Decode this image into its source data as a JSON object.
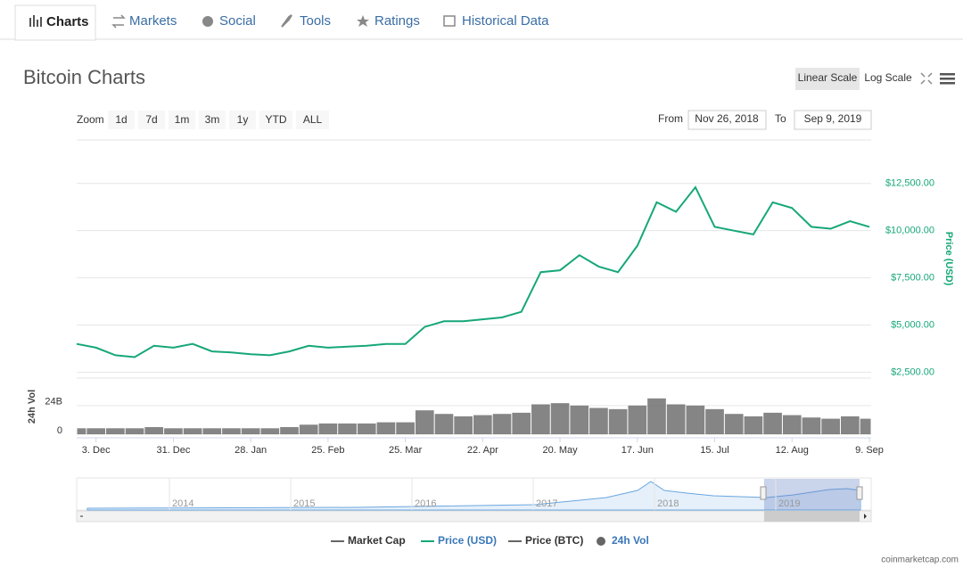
{
  "tabs": [
    "Charts",
    "Markets",
    "Social",
    "Tools",
    "Ratings",
    "Historical Data"
  ],
  "title": "Bitcoin Charts",
  "scale_buttons": [
    "Linear Scale",
    "Log Scale"
  ],
  "zoom_label": "Zoom",
  "zoom_buttons": [
    "1d",
    "7d",
    "1m",
    "3m",
    "1y",
    "YTD",
    "ALL"
  ],
  "from_label": "From",
  "from_date": "Nov 26, 2018",
  "to_label": "To",
  "to_date": "Sep 9, 2019",
  "navigator_years": [
    "2014",
    "2015",
    "2016",
    "2017",
    "2018",
    "2019"
  ],
  "legend_extra": [
    "Market Cap",
    "Price (BTC)"
  ],
  "credit": "coinmarketcap.com",
  "chart_data": {
    "type": "line",
    "categories": [
      null,
      "3. Dec",
      null,
      null,
      null,
      "31. Dec",
      null,
      null,
      null,
      "28. Jan",
      null,
      null,
      null,
      "25. Feb",
      null,
      null,
      null,
      "25. Mar",
      null,
      null,
      null,
      "22. Apr",
      null,
      null,
      null,
      "20. May",
      null,
      null,
      null,
      "17. Jun",
      null,
      null,
      null,
      "15. Jul",
      null,
      null,
      null,
      "12. Aug",
      null,
      null,
      null,
      "9. Sep"
    ],
    "series": [
      {
        "name": "Price (USD)",
        "color": "#16a779",
        "values": [
          4000,
          3800,
          3400,
          3300,
          3900,
          3800,
          4000,
          3600,
          3550,
          3450,
          3400,
          3600,
          3900,
          3800,
          3850,
          3900,
          4000,
          4000,
          4900,
          5200,
          5200,
          5300,
          5400,
          5700,
          7800,
          7900,
          8700,
          8100,
          7800,
          9200,
          11500,
          11000,
          12300,
          10200,
          10000,
          9800,
          11500,
          11200,
          10200,
          10100,
          10500,
          10200
        ]
      },
      {
        "name": "24h Vol",
        "color": "#666666",
        "axis": "y2",
        "values": [
          5,
          5,
          5,
          5,
          6,
          5,
          5,
          5,
          5,
          5,
          5,
          6,
          8,
          9,
          9,
          9,
          10,
          10,
          20,
          17,
          15,
          16,
          17,
          18,
          25,
          26,
          24,
          22,
          21,
          24,
          30,
          25,
          24,
          21,
          17,
          15,
          18,
          16,
          14,
          13,
          15,
          13
        ]
      }
    ],
    "ylabel": "Price (USD)",
    "y2label": "24h Vol",
    "ylim": [
      2000,
      14000
    ],
    "yticks": [
      {
        "value": 2500,
        "label": "$2,500.00"
      },
      {
        "value": 5000,
        "label": "$5,000.00"
      },
      {
        "value": 7500,
        "label": "$7,500.00"
      },
      {
        "value": 10000,
        "label": "$10,000.00"
      },
      {
        "value": 12500,
        "label": "$12,500.00"
      }
    ],
    "y2lim": [
      0,
      47
    ],
    "y2ticks": [
      0,
      {
        "value": 24,
        "label": "24B"
      }
    ],
    "grid": true
  }
}
